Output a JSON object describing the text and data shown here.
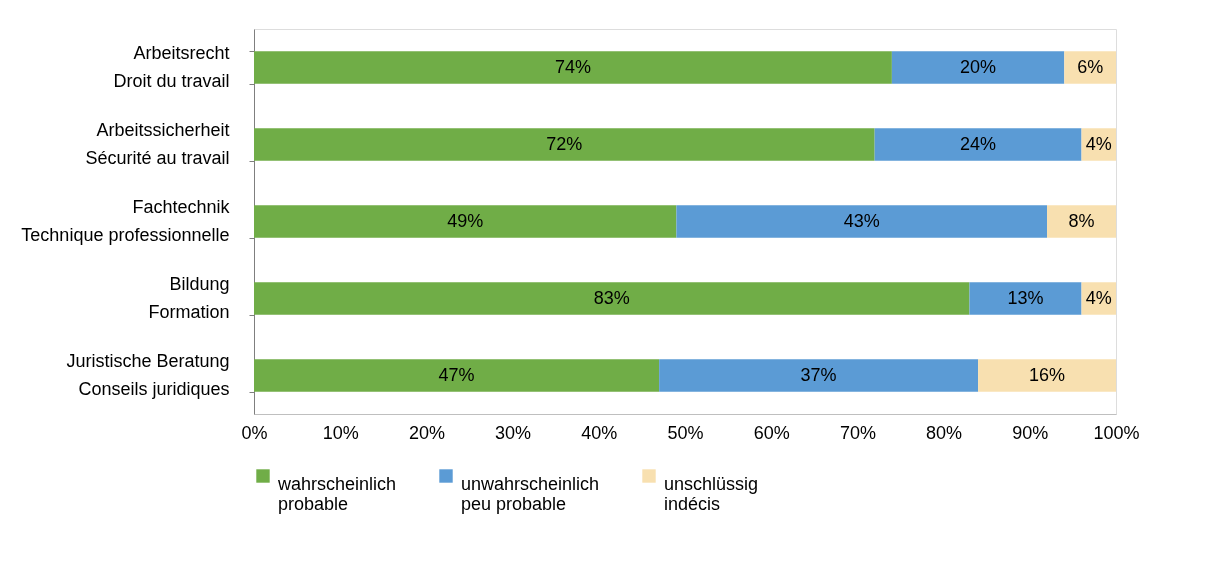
{
  "chart_data": {
    "type": "bar",
    "orientation": "horizontal",
    "stacked": true,
    "categories": [
      "Arbeitsrecht\nDroit du travail",
      "Arbeitssicherheit\nSécurité au travail",
      "Fachtechnik\nTechnique professionnelle",
      "Bildung\nFormation",
      "Juristische Beratung\nConseils juridiques"
    ],
    "series": [
      {
        "name": "wahrscheinlich\nprobable",
        "color": "#70ad47",
        "values": [
          74,
          72,
          49,
          83,
          47
        ],
        "value_labels": [
          "74%",
          "72%",
          "49%",
          "83%",
          "47%"
        ]
      },
      {
        "name": "unwahrscheinlich\npeu probable",
        "color": "#5b9bd5",
        "values": [
          20,
          24,
          43,
          13,
          37
        ],
        "value_labels": [
          "20%",
          "24%",
          "43%",
          "13%",
          "37%"
        ]
      },
      {
        "name": "unschlüssig\nindécis",
        "color": "#f8e0b0",
        "values": [
          6,
          4,
          8,
          4,
          16
        ],
        "value_labels": [
          "6%",
          "4%",
          "8%",
          "4%",
          "16%"
        ]
      }
    ],
    "xlim": [
      0,
      100
    ],
    "xticks": [
      {
        "value": 0,
        "label": "0%"
      },
      {
        "value": 10,
        "label": "10%"
      },
      {
        "value": 20,
        "label": "20%"
      },
      {
        "value": 30,
        "label": "30%"
      },
      {
        "value": 40,
        "label": "40%"
      },
      {
        "value": 50,
        "label": "50%"
      },
      {
        "value": 60,
        "label": "60%"
      },
      {
        "value": 70,
        "label": "70%"
      },
      {
        "value": 80,
        "label": "80%"
      },
      {
        "value": 90,
        "label": "90%"
      },
      {
        "value": 100,
        "label": "100%"
      }
    ],
    "grid": false,
    "legend": "bottom"
  }
}
